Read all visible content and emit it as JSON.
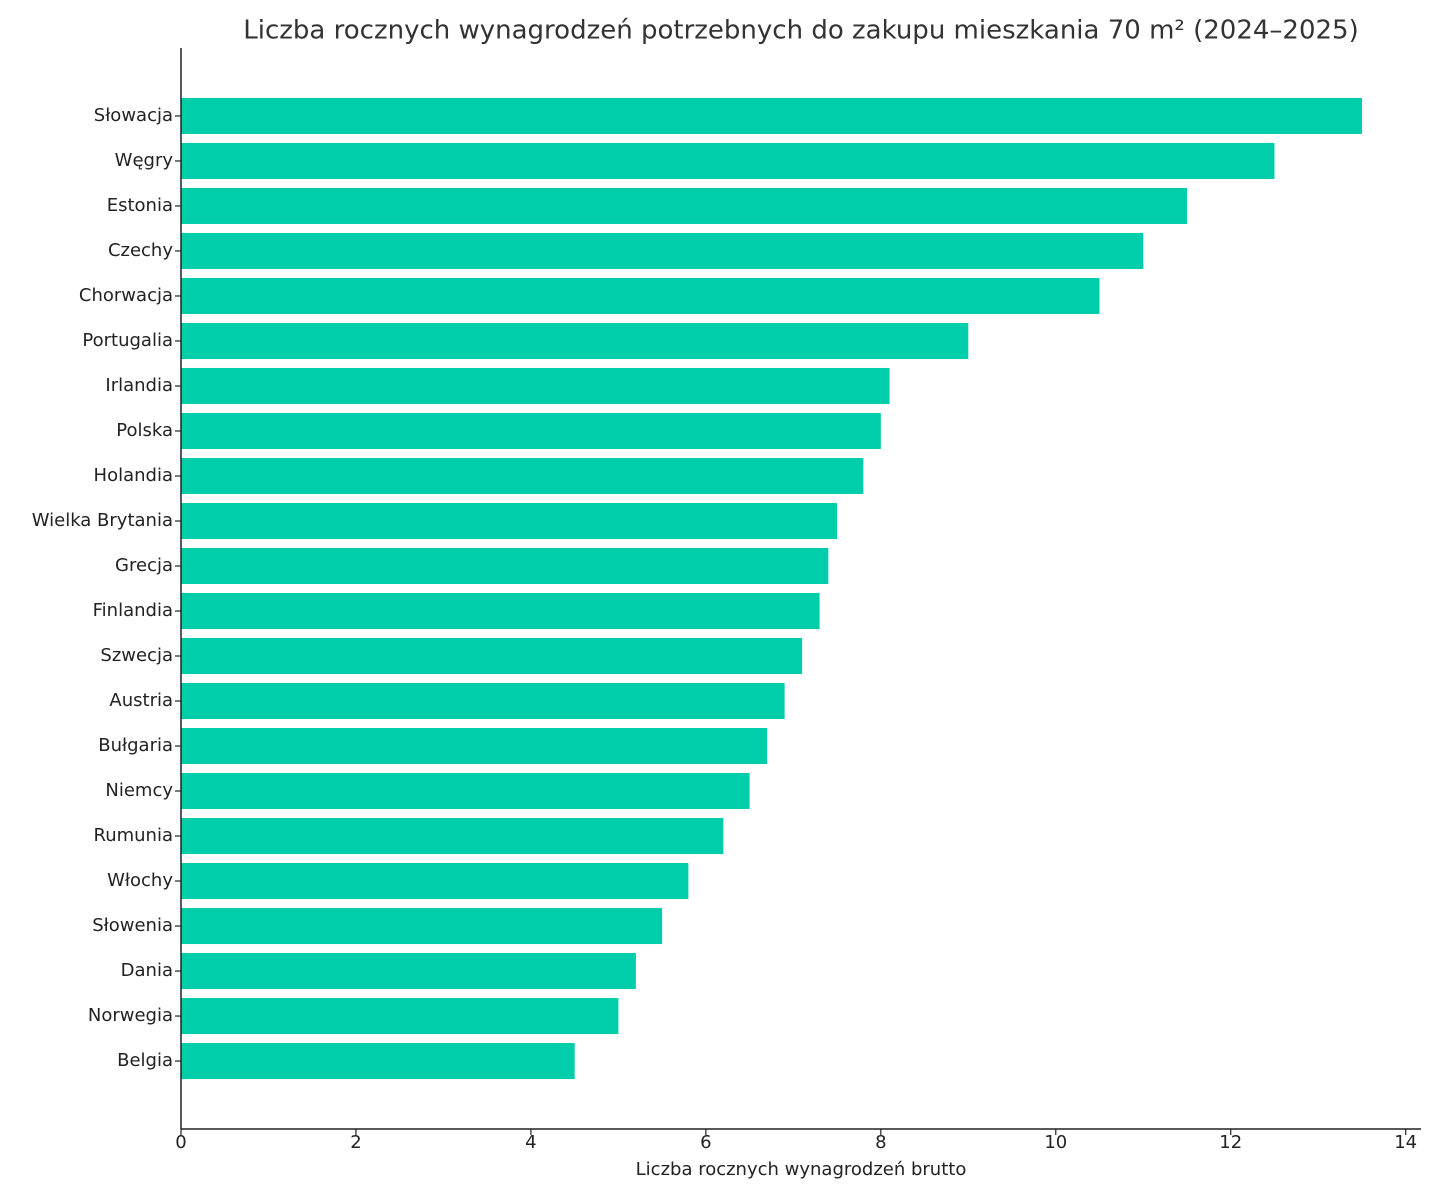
{
  "chart_data": {
    "type": "barh",
    "title": "Liczba rocznych wynagrodzeń potrzebnych do zakupu mieszkania 70 m² (2024–2025)",
    "x_label": "Liczba rocznych wynagrodzeń brutto",
    "categories": [
      "Słowacja",
      "Węgry",
      "Estonia",
      "Czechy",
      "Chorwacja",
      "Portugalia",
      "Irlandia",
      "Polska",
      "Holandia",
      "Wielka Brytania",
      "Grecja",
      "Finlandia",
      "Szwecja",
      "Austria",
      "Bułgaria",
      "Niemcy",
      "Rumunia",
      "Włochy",
      "Słowenia",
      "Dania",
      "Norwegia",
      "Belgia"
    ],
    "values": [
      13.5,
      12.5,
      11.5,
      11.0,
      10.5,
      9.0,
      8.1,
      8.0,
      7.8,
      7.5,
      7.4,
      7.3,
      7.1,
      6.9,
      6.7,
      6.5,
      6.2,
      5.8,
      5.5,
      5.2,
      5.0,
      4.5
    ],
    "color": "#00cdaa",
    "xlim": [
      0,
      14.175
    ],
    "xticks": [
      0,
      2,
      4,
      6,
      8,
      10,
      12,
      14
    ],
    "grid": false
  }
}
